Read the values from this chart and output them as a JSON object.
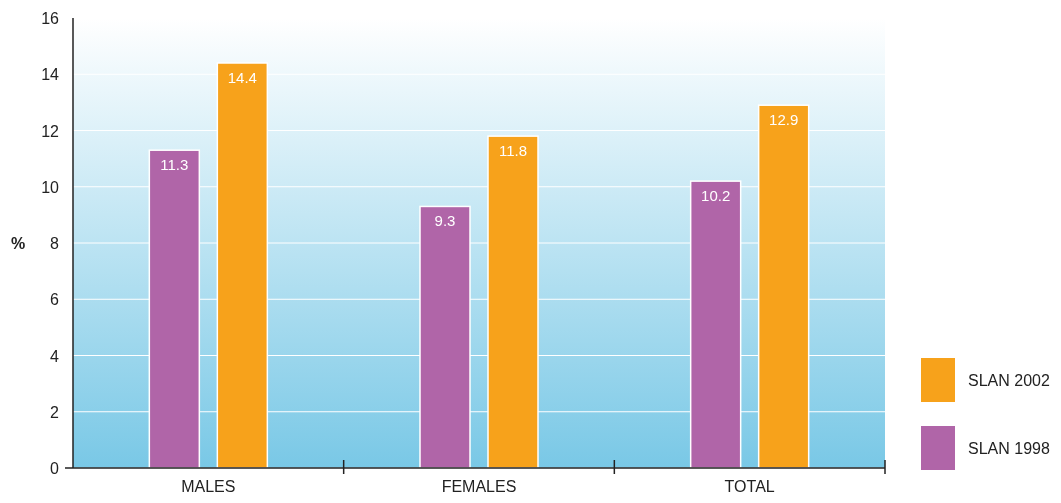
{
  "chart_data": {
    "type": "bar",
    "ylabel": "%",
    "categories": [
      "MALES",
      "FEMALES",
      "TOTAL"
    ],
    "series": [
      {
        "name": "SLAN 1998",
        "color": "#b065a8",
        "values": [
          11.3,
          9.3,
          10.2
        ]
      },
      {
        "name": "SLAN 2002",
        "color": "#f7a21b",
        "values": [
          14.4,
          11.8,
          12.9
        ]
      }
    ],
    "ylim": [
      0,
      16
    ],
    "yticks": [
      0,
      2,
      4,
      6,
      8,
      10,
      12,
      14,
      16
    ],
    "grid": "y",
    "legend": "bottom right",
    "data_labels": true
  }
}
